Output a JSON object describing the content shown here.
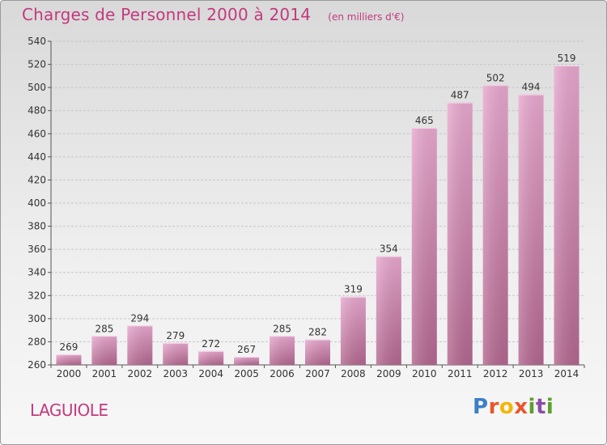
{
  "header": {
    "title": "Charges de Personnel 2000 à 2014",
    "subtitle": "(en milliers d'€)"
  },
  "commune": "LAGUIOLE",
  "logo": {
    "text": "Proxiti"
  },
  "colors": {
    "accent": "#c23a7e",
    "bar_top": "#e8a8cf",
    "bar_bottom": "#b3678f",
    "grid": "#c8c8c8"
  },
  "chart_data": {
    "type": "bar",
    "title": "Charges de Personnel 2000 à 2014",
    "subtitle": "(en milliers d'€)",
    "categories": [
      "2000",
      "2001",
      "2002",
      "2003",
      "2004",
      "2005",
      "2006",
      "2007",
      "2008",
      "2009",
      "2010",
      "2011",
      "2012",
      "2013",
      "2014"
    ],
    "values": [
      269,
      285,
      294,
      279,
      272,
      267,
      285,
      282,
      319,
      354,
      465,
      487,
      502,
      494,
      519
    ],
    "ylim": [
      260,
      540
    ],
    "yticks": [
      260,
      280,
      300,
      320,
      340,
      360,
      380,
      400,
      420,
      440,
      460,
      480,
      500,
      520,
      540
    ],
    "grid": true,
    "data_labels": true
  }
}
